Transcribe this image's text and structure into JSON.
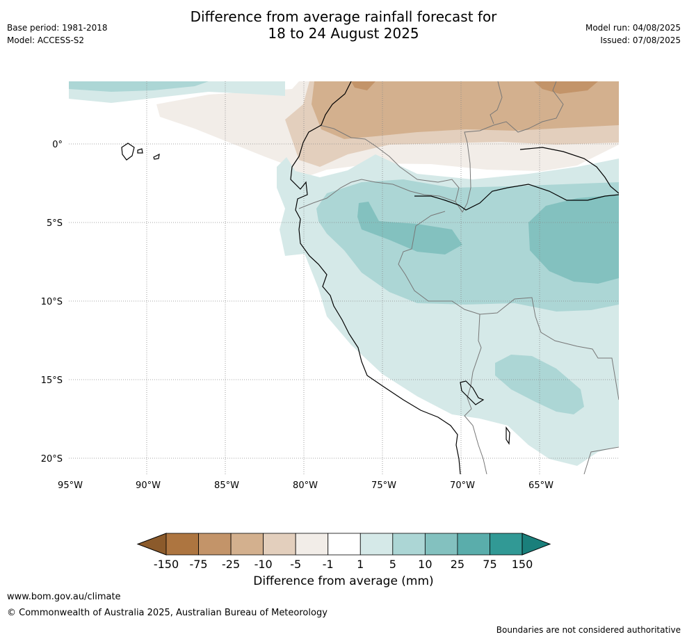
{
  "header": {
    "title_line1": "Difference from average rainfall forecast for",
    "title_line2": "18 to 24 August 2025",
    "base_period": "Base period: 1981-2018",
    "model": "Model: ACCESS-S2",
    "model_run": "Model run: 04/08/2025",
    "issued": "Issued: 07/08/2025"
  },
  "map": {
    "lat_labels": [
      "0°",
      "5°S",
      "10°S",
      "15°S",
      "20°S"
    ],
    "lon_labels": [
      "95°W",
      "90°W",
      "85°W",
      "80°W",
      "75°W",
      "70°W",
      "65°W"
    ],
    "palette": {
      "below_very_strong": "#8b5a2b",
      "below_strong": "#ad7540",
      "below_moderate": "#c39469",
      "below_mild": "#d3b08e",
      "below_weak": "#e3cfbd",
      "below_slight": "#f2ede8",
      "neutral": "#ffffff",
      "above_slight": "#d5e9e8",
      "above_weak": "#acd6d5",
      "above_mild": "#83c1bf",
      "above_moderate": "#5aadab",
      "above_strong": "#319995",
      "above_very_strong": "#1a7f7b"
    }
  },
  "colorbar": {
    "ticks": [
      "-150",
      "-75",
      "-25",
      "-10",
      "-5",
      "-1",
      "1",
      "5",
      "10",
      "25",
      "75",
      "150"
    ],
    "colors": [
      "#ad7540",
      "#c39469",
      "#d3b08e",
      "#e3cfbd",
      "#f2ede8",
      "#ffffff",
      "#d5e9e8",
      "#acd6d5",
      "#83c1bf",
      "#5aadab",
      "#319995"
    ],
    "low_extend_color": "#8b5a2b",
    "high_extend_color": "#1a7f7b",
    "title": "Difference from average (mm)"
  },
  "footer": {
    "url": "www.bom.gov.au/climate",
    "copyright": "© Commonwealth of Australia 2025, Australian Bureau of Meteorology",
    "disclaimer": "Boundaries are not considered authoritative"
  }
}
